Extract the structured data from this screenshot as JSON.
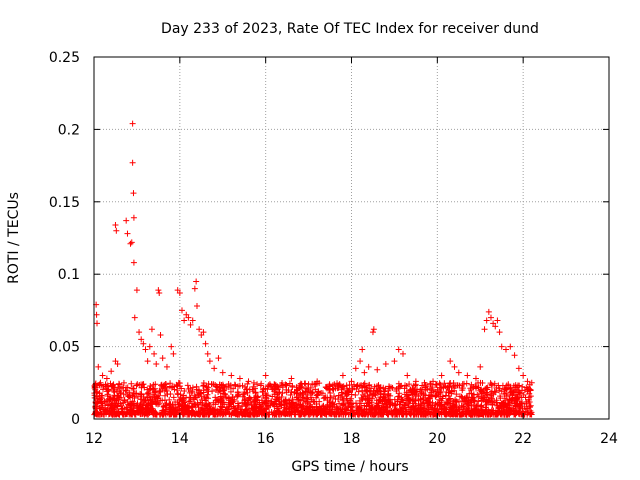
{
  "chart_data": {
    "type": "scatter",
    "title": "Day 233 of 2023, Rate Of TEC Index for receiver dund",
    "xlabel": "GPS time / hours",
    "ylabel": "ROTI / TECUs",
    "xlim": [
      12,
      24
    ],
    "ylim": [
      0,
      0.25
    ],
    "x_ticks": [
      12,
      14,
      16,
      18,
      20,
      22,
      24
    ],
    "x_tick_labels": [
      "12",
      "14",
      "16",
      "18",
      "20",
      "22",
      "24"
    ],
    "y_ticks": [
      0,
      0.05,
      0.1,
      0.15,
      0.2,
      0.25
    ],
    "y_tick_labels": [
      "0",
      "0.05",
      "0.1",
      "0.15",
      "0.2",
      "0.25"
    ],
    "grid": true,
    "marker": "+",
    "color": "#ff0000",
    "series": [
      {
        "name": "ROTI",
        "points": [
          [
            12.05,
            0.079
          ],
          [
            12.06,
            0.072
          ],
          [
            12.07,
            0.066
          ],
          [
            12.1,
            0.036
          ],
          [
            12.15,
            0.025
          ],
          [
            12.2,
            0.03
          ],
          [
            12.3,
            0.028
          ],
          [
            12.4,
            0.033
          ],
          [
            12.5,
            0.04
          ],
          [
            12.55,
            0.038
          ],
          [
            12.5,
            0.134
          ],
          [
            12.52,
            0.13
          ],
          [
            12.75,
            0.137
          ],
          [
            12.78,
            0.128
          ],
          [
            12.85,
            0.121
          ],
          [
            12.88,
            0.122
          ],
          [
            12.9,
            0.204
          ],
          [
            12.9,
            0.177
          ],
          [
            12.92,
            0.156
          ],
          [
            12.93,
            0.139
          ],
          [
            12.93,
            0.108
          ],
          [
            12.95,
            0.07
          ],
          [
            13.0,
            0.089
          ],
          [
            13.05,
            0.06
          ],
          [
            13.1,
            0.055
          ],
          [
            13.15,
            0.052
          ],
          [
            13.2,
            0.048
          ],
          [
            13.25,
            0.04
          ],
          [
            13.3,
            0.05
          ],
          [
            13.35,
            0.062
          ],
          [
            13.4,
            0.045
          ],
          [
            13.45,
            0.038
          ],
          [
            13.5,
            0.089
          ],
          [
            13.52,
            0.087
          ],
          [
            13.55,
            0.058
          ],
          [
            13.6,
            0.042
          ],
          [
            13.7,
            0.036
          ],
          [
            13.8,
            0.05
          ],
          [
            13.85,
            0.045
          ],
          [
            13.95,
            0.089
          ],
          [
            14.0,
            0.087
          ],
          [
            14.05,
            0.075
          ],
          [
            14.1,
            0.068
          ],
          [
            14.15,
            0.072
          ],
          [
            14.2,
            0.07
          ],
          [
            14.25,
            0.065
          ],
          [
            14.3,
            0.068
          ],
          [
            14.35,
            0.09
          ],
          [
            14.38,
            0.095
          ],
          [
            14.4,
            0.078
          ],
          [
            14.45,
            0.062
          ],
          [
            14.5,
            0.058
          ],
          [
            14.55,
            0.06
          ],
          [
            14.6,
            0.052
          ],
          [
            14.65,
            0.045
          ],
          [
            14.7,
            0.04
          ],
          [
            14.8,
            0.035
          ],
          [
            14.9,
            0.042
          ],
          [
            15.0,
            0.032
          ],
          [
            15.2,
            0.03
          ],
          [
            15.4,
            0.028
          ],
          [
            15.6,
            0.026
          ],
          [
            15.8,
            0.024
          ],
          [
            16.0,
            0.03
          ],
          [
            16.2,
            0.024
          ],
          [
            16.4,
            0.022
          ],
          [
            16.6,
            0.028
          ],
          [
            16.8,
            0.022
          ],
          [
            17.0,
            0.024
          ],
          [
            17.2,
            0.026
          ],
          [
            17.4,
            0.022
          ],
          [
            17.6,
            0.024
          ],
          [
            17.8,
            0.03
          ],
          [
            18.0,
            0.026
          ],
          [
            18.1,
            0.035
          ],
          [
            18.2,
            0.04
          ],
          [
            18.25,
            0.048
          ],
          [
            18.3,
            0.032
          ],
          [
            18.4,
            0.036
          ],
          [
            18.5,
            0.06
          ],
          [
            18.52,
            0.062
          ],
          [
            18.6,
            0.034
          ],
          [
            18.8,
            0.038
          ],
          [
            19.0,
            0.04
          ],
          [
            19.1,
            0.048
          ],
          [
            19.2,
            0.045
          ],
          [
            19.3,
            0.03
          ],
          [
            19.5,
            0.026
          ],
          [
            19.7,
            0.025
          ],
          [
            19.9,
            0.026
          ],
          [
            20.1,
            0.03
          ],
          [
            20.3,
            0.04
          ],
          [
            20.4,
            0.036
          ],
          [
            20.5,
            0.032
          ],
          [
            20.7,
            0.03
          ],
          [
            20.9,
            0.028
          ],
          [
            21.0,
            0.036
          ],
          [
            21.1,
            0.062
          ],
          [
            21.15,
            0.068
          ],
          [
            21.2,
            0.074
          ],
          [
            21.25,
            0.07
          ],
          [
            21.3,
            0.066
          ],
          [
            21.35,
            0.064
          ],
          [
            21.4,
            0.068
          ],
          [
            21.45,
            0.06
          ],
          [
            21.5,
            0.05
          ],
          [
            21.6,
            0.048
          ],
          [
            21.7,
            0.05
          ],
          [
            21.8,
            0.044
          ],
          [
            21.9,
            0.035
          ],
          [
            22.0,
            0.03
          ],
          [
            22.1,
            0.026
          ],
          [
            22.2,
            0.025
          ]
        ]
      }
    ],
    "dense_band": {
      "x_range": [
        12.0,
        22.2
      ],
      "y_range": [
        0.003,
        0.025
      ],
      "note": "dense cluster of ROTI points near the baseline"
    }
  }
}
